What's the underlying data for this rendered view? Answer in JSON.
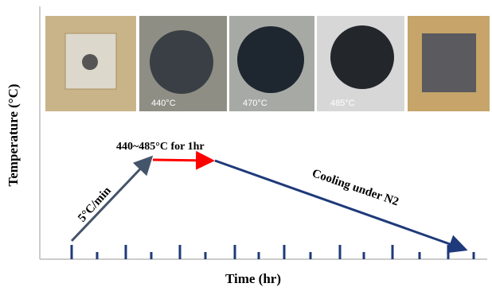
{
  "axes": {
    "y_label": "Temperature (°C)",
    "x_label": "Time (hr)"
  },
  "photo_labels": [
    "440°C",
    "470°C",
    "485°C"
  ],
  "segments": [
    {
      "label": "5°C/min"
    },
    {
      "label": "440~485°C for 1hr"
    },
    {
      "label": "Cooling under N2"
    }
  ]
}
